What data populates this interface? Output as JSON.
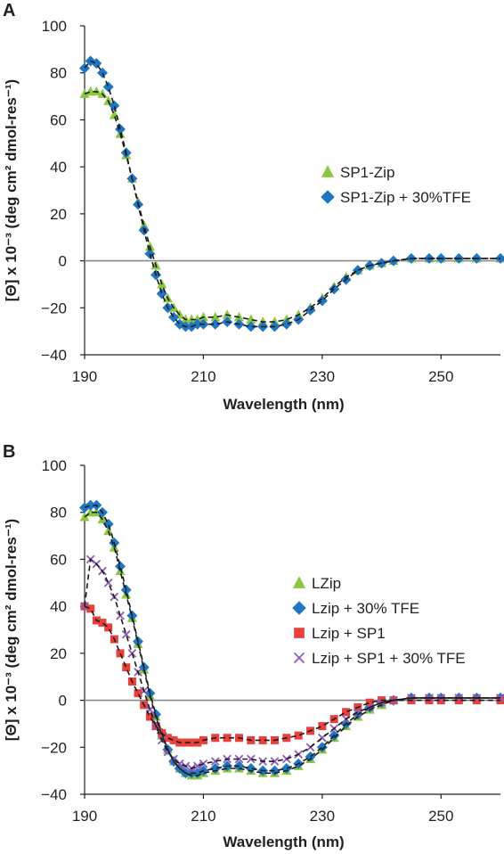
{
  "chart_data": [
    {
      "type": "scatter",
      "panel": "A",
      "xlabel": "Wavelength (nm)",
      "ylabel": "[Θ] x 10⁻³ (deg cm² dmol-res⁻¹)",
      "xlim": [
        190,
        260
      ],
      "ylim": [
        -40,
        100
      ],
      "xticks": [
        190,
        210,
        230,
        250
      ],
      "yticks": [
        -40,
        -20,
        0,
        20,
        40,
        60,
        80,
        100
      ],
      "grid": false,
      "legend_position": "right",
      "zero_line": true,
      "series": [
        {
          "name": "SP1-Zip",
          "marker": "triangle",
          "color": "#8dc63f",
          "x": [
            190,
            191,
            192,
            193,
            194,
            195,
            196,
            197,
            198,
            199,
            200,
            201,
            202,
            203,
            204,
            205,
            206,
            207,
            208,
            209,
            210,
            212,
            214,
            216,
            218,
            220,
            222,
            224,
            226,
            228,
            230,
            232,
            234,
            236,
            238,
            240,
            242,
            245,
            248,
            250,
            253,
            256,
            260
          ],
          "y": [
            71,
            72,
            72,
            71,
            68,
            62,
            54,
            45,
            35,
            25,
            15,
            6,
            -2,
            -10,
            -16,
            -20,
            -23,
            -25,
            -25,
            -25,
            -24,
            -24,
            -23,
            -24,
            -25,
            -26,
            -26,
            -25,
            -23,
            -20,
            -16,
            -11,
            -7,
            -4,
            -2,
            -1,
            0,
            1,
            1,
            1,
            1,
            1,
            1
          ]
        },
        {
          "name": "SP1-Zip + 30%TFE",
          "marker": "diamond",
          "color": "#1f77c4",
          "x": [
            190,
            191,
            192,
            193,
            194,
            195,
            196,
            197,
            198,
            199,
            200,
            201,
            202,
            203,
            204,
            205,
            206,
            207,
            208,
            209,
            210,
            212,
            214,
            216,
            218,
            220,
            222,
            224,
            226,
            228,
            230,
            232,
            234,
            236,
            238,
            240,
            242,
            245,
            248,
            250,
            253,
            256,
            260
          ],
          "y": [
            82,
            85,
            84,
            80,
            74,
            66,
            56,
            46,
            35,
            24,
            13,
            3,
            -6,
            -14,
            -20,
            -24,
            -27,
            -28,
            -28,
            -27,
            -27,
            -27,
            -26,
            -27,
            -28,
            -28,
            -28,
            -27,
            -25,
            -21,
            -17,
            -12,
            -8,
            -4,
            -2,
            -1,
            0,
            1,
            1,
            1,
            1,
            1,
            1
          ]
        }
      ]
    },
    {
      "type": "scatter",
      "panel": "B",
      "xlabel": "Wavelength (nm)",
      "ylabel": "[Θ] x 10⁻³ (deg cm² dmol-res⁻¹)",
      "xlim": [
        190,
        260
      ],
      "ylim": [
        -40,
        100
      ],
      "xticks": [
        190,
        210,
        230,
        250
      ],
      "yticks": [
        -40,
        -20,
        0,
        20,
        40,
        60,
        80,
        100
      ],
      "grid": false,
      "legend_position": "right",
      "zero_line": true,
      "series": [
        {
          "name": "LZip",
          "marker": "triangle",
          "color": "#8dc63f",
          "x": [
            190,
            191,
            192,
            193,
            194,
            195,
            196,
            197,
            198,
            199,
            200,
            201,
            202,
            203,
            204,
            205,
            206,
            207,
            208,
            209,
            210,
            212,
            214,
            216,
            218,
            220,
            222,
            224,
            226,
            228,
            230,
            232,
            234,
            236,
            238,
            240,
            242,
            245,
            248,
            250,
            253,
            256,
            260
          ],
          "y": [
            78,
            80,
            80,
            77,
            72,
            65,
            55,
            45,
            35,
            24,
            13,
            2,
            -7,
            -15,
            -21,
            -26,
            -29,
            -31,
            -32,
            -32,
            -31,
            -30,
            -29,
            -29,
            -30,
            -31,
            -31,
            -30,
            -28,
            -25,
            -21,
            -16,
            -11,
            -7,
            -4,
            -2,
            0,
            1,
            1,
            1,
            1,
            1,
            1
          ]
        },
        {
          "name": "Lzip + 30% TFE",
          "marker": "diamond",
          "color": "#1f77c4",
          "x": [
            190,
            191,
            192,
            193,
            194,
            195,
            196,
            197,
            198,
            199,
            200,
            201,
            202,
            203,
            204,
            205,
            206,
            207,
            208,
            209,
            210,
            212,
            214,
            216,
            218,
            220,
            222,
            224,
            226,
            228,
            230,
            232,
            234,
            236,
            238,
            240,
            242,
            245,
            248,
            250,
            253,
            256,
            260
          ],
          "y": [
            82,
            83,
            83,
            80,
            75,
            67,
            57,
            47,
            36,
            25,
            14,
            3,
            -6,
            -14,
            -21,
            -26,
            -29,
            -31,
            -31,
            -31,
            -30,
            -29,
            -28,
            -28,
            -29,
            -30,
            -30,
            -29,
            -27,
            -24,
            -20,
            -15,
            -10,
            -6,
            -3,
            -1,
            0,
            1,
            1,
            1,
            1,
            1,
            1
          ]
        },
        {
          "name": "Lzip + SP1",
          "marker": "square",
          "color": "#e8413c",
          "x": [
            190,
            191,
            192,
            193,
            194,
            195,
            196,
            197,
            198,
            199,
            200,
            201,
            202,
            203,
            204,
            205,
            206,
            207,
            208,
            209,
            210,
            212,
            214,
            216,
            218,
            220,
            222,
            224,
            226,
            228,
            230,
            232,
            234,
            236,
            238,
            240,
            242,
            245,
            248,
            250,
            253,
            256,
            260
          ],
          "y": [
            40,
            39,
            34,
            33,
            31,
            26,
            20,
            14,
            8,
            3,
            -2,
            -7,
            -11,
            -14,
            -16,
            -17,
            -18,
            -18,
            -18,
            -18,
            -17,
            -16,
            -16,
            -16,
            -17,
            -17,
            -17,
            -16,
            -15,
            -13,
            -11,
            -8,
            -5,
            -3,
            -1,
            0,
            0,
            0,
            0,
            0,
            0,
            0,
            0
          ]
        },
        {
          "name": "Lzip + SP1 + 30% TFE",
          "marker": "x",
          "color": "#8e5bb5",
          "x": [
            190,
            191,
            192,
            193,
            194,
            195,
            196,
            197,
            198,
            199,
            200,
            201,
            202,
            203,
            204,
            205,
            206,
            207,
            208,
            209,
            210,
            212,
            214,
            216,
            218,
            220,
            222,
            224,
            226,
            228,
            230,
            232,
            234,
            236,
            238,
            240,
            242,
            245,
            248,
            250,
            253,
            256,
            260
          ],
          "y": [
            40,
            60,
            58,
            55,
            50,
            44,
            36,
            28,
            20,
            12,
            4,
            -4,
            -11,
            -17,
            -22,
            -25,
            -27,
            -28,
            -29,
            -28,
            -27,
            -26,
            -25,
            -25,
            -25,
            -26,
            -26,
            -25,
            -23,
            -20,
            -16,
            -12,
            -8,
            -5,
            -3,
            -1,
            0,
            1,
            1,
            1,
            1,
            1,
            1
          ]
        }
      ]
    }
  ]
}
